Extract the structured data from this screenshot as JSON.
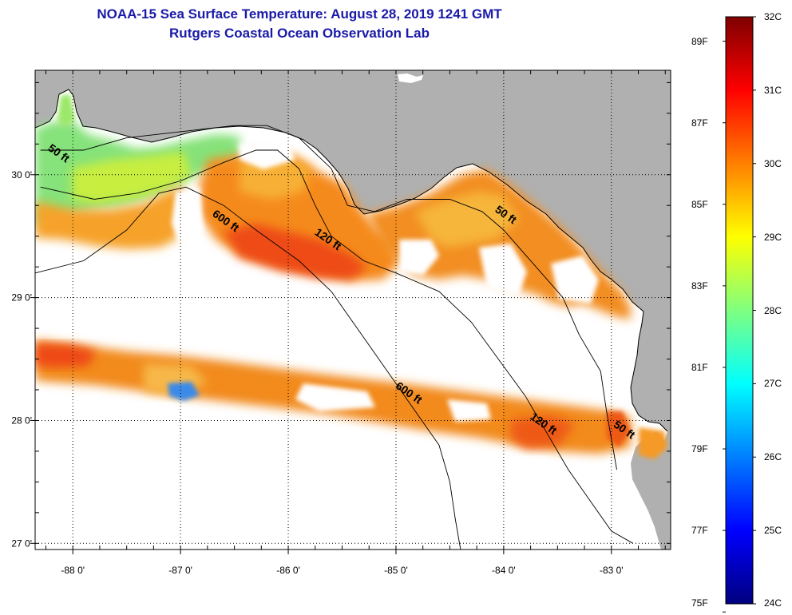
{
  "title": {
    "line1": "NOAA-15 Sea Surface Temperature:  August 28, 2019 1241 GMT",
    "line2": "Rutgers Coastal Ocean Observation Lab"
  },
  "axes": {
    "lon_range": [
      -88.35,
      -82.45
    ],
    "lat_range": [
      26.95,
      30.85
    ],
    "lon_ticks": [
      {
        "value": -88,
        "label": "-88 0'"
      },
      {
        "value": -87,
        "label": "-87 0'"
      },
      {
        "value": -86,
        "label": "-86 0'"
      },
      {
        "value": -85,
        "label": "-85 0'"
      },
      {
        "value": -84,
        "label": "-84 0'"
      },
      {
        "value": -83,
        "label": "-83 0'"
      }
    ],
    "lat_ticks": [
      {
        "value": 30,
        "label": "30 0'"
      },
      {
        "value": 29,
        "label": "29 0'"
      },
      {
        "value": 28,
        "label": "28 0'"
      },
      {
        "value": 27,
        "label": "27 0'"
      }
    ],
    "grid": "dotted"
  },
  "contours": [
    {
      "label": "50 ft",
      "points": [
        [
          -88.3,
          30.2
        ],
        [
          -87.9,
          30.2
        ],
        [
          -87.5,
          30.3
        ],
        [
          -87.0,
          30.35
        ],
        [
          -86.5,
          30.4
        ],
        [
          -86.2,
          30.4
        ],
        [
          -85.9,
          30.3
        ],
        [
          -85.6,
          30.05
        ],
        [
          -85.45,
          29.75
        ],
        [
          -85.2,
          29.7
        ],
        [
          -84.9,
          29.8
        ],
        [
          -84.5,
          29.8
        ],
        [
          -84.2,
          29.7
        ],
        [
          -84.0,
          29.55
        ],
        [
          -83.7,
          29.25
        ],
        [
          -83.45,
          29.0
        ],
        [
          -83.3,
          28.7
        ],
        [
          -83.1,
          28.4
        ],
        [
          -83.05,
          28.1
        ],
        [
          -83.0,
          27.85
        ],
        [
          -82.95,
          27.6
        ]
      ],
      "labels": [
        {
          "lon": -88.15,
          "lat": 30.15
        },
        {
          "lon": -84.0,
          "lat": 29.65
        },
        {
          "lon": -82.9,
          "lat": 27.9
        }
      ]
    },
    {
      "label": "120 ft",
      "points": [
        [
          -88.3,
          29.9
        ],
        [
          -87.8,
          29.8
        ],
        [
          -87.4,
          29.85
        ],
        [
          -87.0,
          29.95
        ],
        [
          -86.6,
          30.1
        ],
        [
          -86.3,
          30.2
        ],
        [
          -86.1,
          30.2
        ],
        [
          -85.9,
          30.05
        ],
        [
          -85.75,
          29.75
        ],
        [
          -85.6,
          29.5
        ],
        [
          -85.3,
          29.3
        ],
        [
          -85.0,
          29.2
        ],
        [
          -84.6,
          29.05
        ],
        [
          -84.3,
          28.8
        ],
        [
          -84.05,
          28.5
        ],
        [
          -83.8,
          28.2
        ],
        [
          -83.6,
          27.9
        ],
        [
          -83.4,
          27.6
        ],
        [
          -83.2,
          27.35
        ],
        [
          -83.0,
          27.1
        ],
        [
          -82.8,
          27.0
        ]
      ],
      "labels": [
        {
          "lon": -85.65,
          "lat": 29.45
        },
        {
          "lon": -83.65,
          "lat": 27.95
        }
      ]
    },
    {
      "label": "600 ft",
      "points": [
        [
          -88.35,
          29.2
        ],
        [
          -87.9,
          29.3
        ],
        [
          -87.5,
          29.55
        ],
        [
          -87.2,
          29.85
        ],
        [
          -86.95,
          29.9
        ],
        [
          -86.6,
          29.75
        ],
        [
          -86.3,
          29.55
        ],
        [
          -85.9,
          29.3
        ],
        [
          -85.6,
          29.05
        ],
        [
          -85.4,
          28.8
        ],
        [
          -85.2,
          28.55
        ],
        [
          -85.0,
          28.3
        ],
        [
          -84.8,
          28.05
        ],
        [
          -84.6,
          27.8
        ],
        [
          -84.5,
          27.5
        ],
        [
          -84.45,
          27.2
        ],
        [
          -84.4,
          26.95
        ]
      ],
      "labels": [
        {
          "lon": -86.6,
          "lat": 29.6
        },
        {
          "lon": -84.9,
          "lat": 28.2
        }
      ]
    }
  ],
  "colorbar": {
    "min_c": 24,
    "max_c": 32,
    "celsius_labels": [
      "32C",
      "31C",
      "30C",
      "29C",
      "28C",
      "27C",
      "26C",
      "25C",
      "24C"
    ],
    "fahrenheit_labels": [
      {
        "value": 89,
        "label": "89F"
      },
      {
        "value": 87,
        "label": "87F"
      },
      {
        "value": 85,
        "label": "85F"
      },
      {
        "value": 83,
        "label": "83F"
      },
      {
        "value": 81,
        "label": "81F"
      },
      {
        "value": 79,
        "label": "79F"
      },
      {
        "value": 77,
        "label": "77F"
      },
      {
        "value": 75,
        "label": "75F"
      }
    ],
    "colors": [
      "#00007f",
      "#0000ff",
      "#007fff",
      "#00ffff",
      "#7fff7f",
      "#ffff00",
      "#ff7f00",
      "#ff0000",
      "#7f0000"
    ]
  },
  "colors": {
    "land": "#b0b0b0",
    "title": "#1a1aa8"
  }
}
